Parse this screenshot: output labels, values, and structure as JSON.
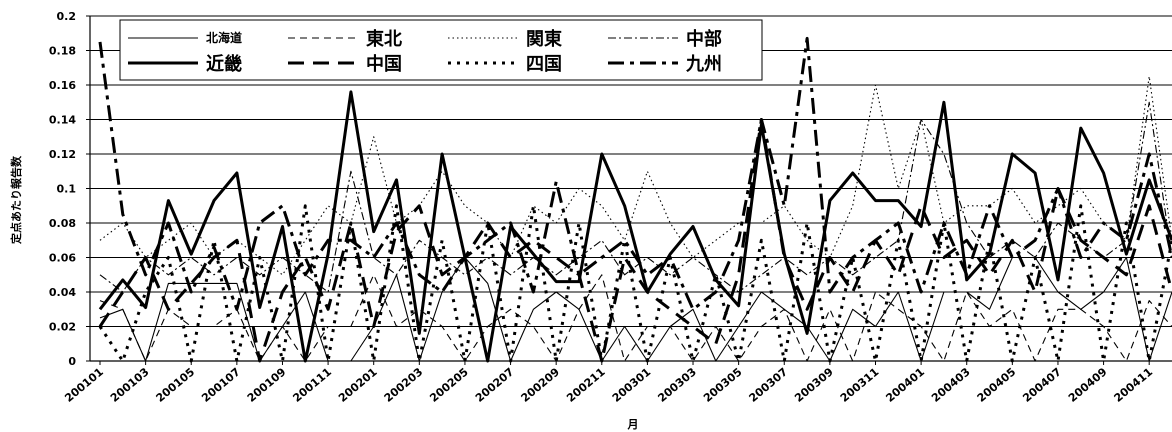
{
  "chart_data": {
    "type": "line",
    "title": "",
    "xlabel": "月",
    "ylabel": "定点あたり報告数",
    "ylim": [
      0,
      0.2
    ],
    "yticks": [
      "0",
      "0.02",
      "0.04",
      "0.06",
      "0.08",
      "0.1",
      "0.12",
      "0.14",
      "0.16",
      "0.18",
      "0.2"
    ],
    "grid": "horizontal",
    "legend_position": "top-left",
    "x": [
      "200101",
      "200102",
      "200103",
      "200104",
      "200105",
      "200106",
      "200107",
      "200108",
      "200109",
      "200110",
      "200111",
      "200112",
      "200201",
      "200202",
      "200203",
      "200204",
      "200205",
      "200206",
      "200207",
      "200208",
      "200209",
      "200210",
      "200211",
      "200212",
      "200301",
      "200302",
      "200303",
      "200304",
      "200305",
      "200306",
      "200307",
      "200308",
      "200309",
      "200310",
      "200311",
      "200312",
      "200401",
      "200402",
      "200403",
      "200404",
      "200405",
      "200406",
      "200407",
      "200408",
      "200409",
      "200410",
      "200411",
      "200412"
    ],
    "x_tick_labels": [
      "200101",
      "200103",
      "200105",
      "200107",
      "200109",
      "200111",
      "200201",
      "200203",
      "200205",
      "200207",
      "200209",
      "200211",
      "200301",
      "200303",
      "200305",
      "200307",
      "200309",
      "200311",
      "200401",
      "200403",
      "200405",
      "200407",
      "200409",
      "200411"
    ],
    "series": [
      {
        "name": "北海道",
        "style": "thin-solid",
        "values": [
          0.025,
          0.03,
          0,
          0.045,
          0.045,
          0.045,
          0.045,
          0,
          0.02,
          0.04,
          0,
          0,
          0.02,
          0.05,
          0,
          0.04,
          0.06,
          0.045,
          0,
          0.03,
          0.04,
          0.03,
          0,
          0.02,
          0,
          0.02,
          0.03,
          0,
          0.02,
          0.04,
          0.03,
          0.02,
          0,
          0.03,
          0.02,
          0.04,
          0,
          0.04,
          0.04,
          0.03,
          0.06,
          0.06,
          0.04,
          0.03,
          0.04,
          0.06,
          0,
          0.04
        ]
      },
      {
        "name": "東北",
        "style": "thin-dashed",
        "values": [
          0.035,
          0.03,
          0,
          0.03,
          0.02,
          0.02,
          0.03,
          0,
          0.02,
          0,
          0.02,
          0.02,
          0.05,
          0.02,
          0.03,
          0.02,
          0,
          0.02,
          0.03,
          0.02,
          0,
          0.03,
          0.05,
          0,
          0.02,
          0.02,
          0,
          0.02,
          0,
          0.02,
          0.03,
          0,
          0.03,
          0,
          0.04,
          0.03,
          0.02,
          0,
          0.04,
          0.02,
          0.03,
          0,
          0.03,
          0.03,
          0.02,
          0,
          0.035,
          0.02
        ]
      },
      {
        "name": "関東",
        "style": "thin-dotted",
        "values": [
          0.07,
          0.08,
          0.06,
          0.07,
          0.08,
          0.06,
          0.07,
          0.06,
          0.05,
          0.07,
          0.09,
          0.08,
          0.13,
          0.08,
          0.09,
          0.11,
          0.09,
          0.08,
          0.06,
          0.09,
          0.08,
          0.1,
          0.09,
          0.07,
          0.11,
          0.08,
          0.06,
          0.07,
          0.08,
          0.08,
          0.09,
          0.07,
          0.06,
          0.09,
          0.16,
          0.1,
          0.14,
          0.08,
          0.09,
          0.09,
          0.1,
          0.08,
          0.09,
          0.1,
          0.08,
          0.07,
          0.165,
          0.07
        ]
      },
      {
        "name": "中部",
        "style": "thin-dashdot",
        "values": [
          0.05,
          0.04,
          0.06,
          0.05,
          0.06,
          0.05,
          0.06,
          0.05,
          0.06,
          0.05,
          0.04,
          0.11,
          0.06,
          0.05,
          0.07,
          0.06,
          0.05,
          0.06,
          0.05,
          0.06,
          0.05,
          0.06,
          0.07,
          0.05,
          0.06,
          0.05,
          0.06,
          0.05,
          0.04,
          0.05,
          0.06,
          0.05,
          0.06,
          0.05,
          0.06,
          0.07,
          0.14,
          0.12,
          0.08,
          0.06,
          0.07,
          0.06,
          0.08,
          0.07,
          0.06,
          0.07,
          0.15,
          0.06
        ]
      },
      {
        "name": "近畿",
        "style": "thick-solid",
        "values": [
          0.03,
          0.047,
          0.031,
          0.093,
          0.062,
          0.093,
          0.109,
          0.031,
          0.078,
          0,
          0.062,
          0.156,
          0.075,
          0.105,
          0.016,
          0.12,
          0.06,
          0,
          0.078,
          0.062,
          0.046,
          0.046,
          0.12,
          0.09,
          0.04,
          0.062,
          0.078,
          0.047,
          0.032,
          0.137,
          0.062,
          0.016,
          0.093,
          0.109,
          0.093,
          0.093,
          0.078,
          0.15,
          0.047,
          0.062,
          0.12,
          0.109,
          0.047,
          0.135,
          0.109,
          0.062,
          0.105,
          0.07
        ]
      },
      {
        "name": "中国",
        "style": "thick-dashed",
        "values": [
          0.02,
          0.04,
          0.06,
          0.03,
          0.045,
          0.06,
          0.07,
          0,
          0.04,
          0.06,
          0.03,
          0.08,
          0.02,
          0.075,
          0.09,
          0.05,
          0.06,
          0.08,
          0.06,
          0.07,
          0.06,
          0.05,
          0,
          0.06,
          0.04,
          0.03,
          0.02,
          0.01,
          0.05,
          0.14,
          0.06,
          0.03,
          0.06,
          0.04,
          0.07,
          0.05,
          0.09,
          0.06,
          0.07,
          0.05,
          0.07,
          0.04,
          0.1,
          0.07,
          0.06,
          0.05,
          0.09,
          0.04
        ]
      },
      {
        "name": "四国",
        "style": "thick-dotted",
        "values": [
          0.02,
          0,
          0.04,
          0.06,
          0,
          0.07,
          0,
          0.06,
          0,
          0.09,
          0,
          0.08,
          0,
          0.09,
          0,
          0.07,
          0,
          0.08,
          0,
          0.09,
          0,
          0.08,
          0,
          0.07,
          0,
          0.06,
          0,
          0.05,
          0,
          0.07,
          0,
          0.08,
          0,
          0.06,
          0,
          0.07,
          0,
          0.08,
          0,
          0.07,
          0,
          0.06,
          0,
          0.09,
          0,
          0.08,
          0,
          0.07
        ]
      },
      {
        "name": "九州",
        "style": "thick-dashdot",
        "values": [
          0.185,
          0.085,
          0.05,
          0.08,
          0.04,
          0.066,
          0.03,
          0.08,
          0.09,
          0.05,
          0.07,
          0.07,
          0.06,
          0.08,
          0.05,
          0.04,
          0.06,
          0.07,
          0.08,
          0.04,
          0.104,
          0.05,
          0.06,
          0.07,
          0.05,
          0.06,
          0.03,
          0.04,
          0.07,
          0.14,
          0.09,
          0.187,
          0.04,
          0.06,
          0.07,
          0.08,
          0.04,
          0.08,
          0.05,
          0.09,
          0.06,
          0.07,
          0.1,
          0.06,
          0.08,
          0.07,
          0.12,
          0.06
        ]
      }
    ]
  }
}
